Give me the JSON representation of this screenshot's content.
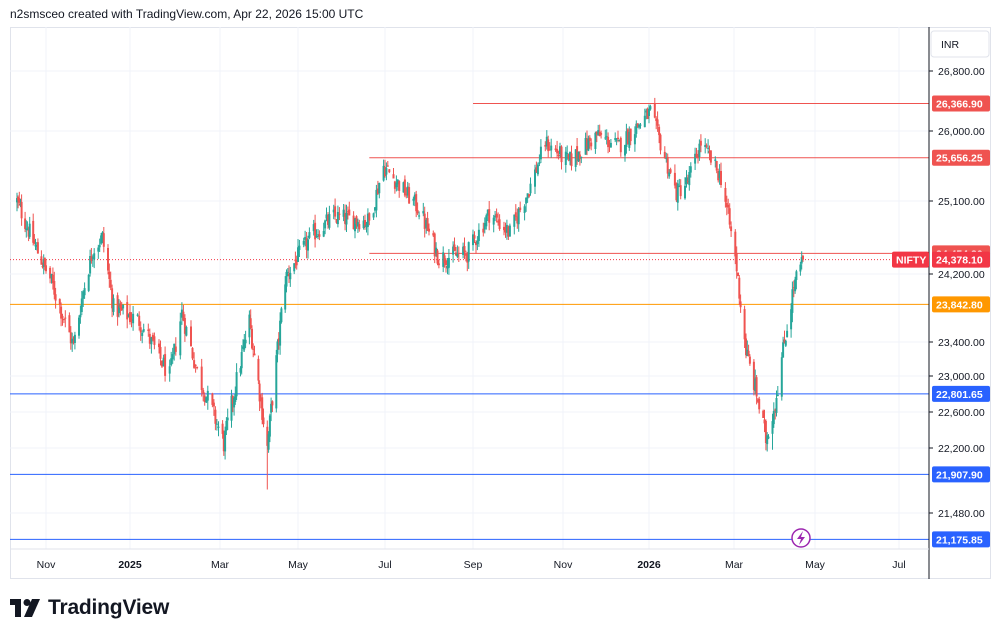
{
  "header": {
    "title": "n2smsceo created with TradingView.com, Apr 22, 2026 15:00 UTC"
  },
  "footer": {
    "logo_text": "TradingView"
  },
  "colors": {
    "up": "#26a69a",
    "down": "#ef5350",
    "resistance": "#ef5350",
    "support": "#2962ff",
    "pivot": "#ff9800",
    "current": "#f23645"
  },
  "chart_data": {
    "type": "candlestick",
    "title": "",
    "symbol": "NIFTY",
    "currency": "INR",
    "ylim": [
      21000,
      27100
    ],
    "y_ticks": [
      26800,
      26000,
      25100,
      24200,
      23400,
      23000,
      22600,
      22200,
      21480
    ],
    "y_tick_labels": [
      "26,800.00",
      "26,000.00",
      "25,100.00",
      "24,200.00",
      "23,400.00",
      "23,000.00",
      "22,600.00",
      "22,200.00",
      "21,480.00"
    ],
    "x_labels": [
      {
        "label": "Nov",
        "date": "2024-11-01",
        "bold": false
      },
      {
        "label": "2025",
        "date": "2025-01-01",
        "bold": true
      },
      {
        "label": "Mar",
        "date": "2025-03-01",
        "bold": false
      },
      {
        "label": "May",
        "date": "2025-05-01",
        "bold": false
      },
      {
        "label": "Jul",
        "date": "2025-07-01",
        "bold": false
      },
      {
        "label": "Sep",
        "date": "2025-09-01",
        "bold": false
      },
      {
        "label": "Nov",
        "date": "2025-11-01",
        "bold": false
      },
      {
        "label": "2026",
        "date": "2026-01-01",
        "bold": true
      },
      {
        "label": "Mar",
        "date": "2026-03-01",
        "bold": false
      },
      {
        "label": "May",
        "date": "2026-05-01",
        "bold": false
      },
      {
        "label": "Jul",
        "date": "2026-07-01",
        "bold": false
      }
    ],
    "anchor_closes": [
      [
        "2024-10-07",
        25100
      ],
      [
        "2024-10-21",
        24600
      ],
      [
        "2024-11-04",
        24150
      ],
      [
        "2024-11-21",
        23350
      ],
      [
        "2024-11-28",
        24000
      ],
      [
        "2024-12-05",
        24500
      ],
      [
        "2024-12-12",
        24650
      ],
      [
        "2024-12-20",
        23800
      ],
      [
        "2025-01-07",
        23650
      ],
      [
        "2025-01-27",
        23000
      ],
      [
        "2025-02-04",
        23750
      ],
      [
        "2025-02-14",
        23050
      ],
      [
        "2025-03-04",
        22250
      ],
      [
        "2025-03-24",
        23650
      ],
      [
        "2025-04-07",
        22200
      ],
      [
        "2025-04-21",
        24150
      ],
      [
        "2025-05-12",
        24700
      ],
      [
        "2025-05-26",
        24900
      ],
      [
        "2025-06-20",
        24850
      ],
      [
        "2025-06-30",
        25550
      ],
      [
        "2025-07-25",
        25000
      ],
      [
        "2025-08-08",
        24400
      ],
      [
        "2025-08-28",
        24450
      ],
      [
        "2025-09-12",
        24950
      ],
      [
        "2025-09-26",
        24700
      ],
      [
        "2025-10-10",
        25300
      ],
      [
        "2025-10-20",
        25850
      ],
      [
        "2025-11-05",
        25600
      ],
      [
        "2025-11-25",
        25950
      ],
      [
        "2025-12-10",
        25800
      ],
      [
        "2026-01-02",
        26250
      ],
      [
        "2026-01-20",
        25200
      ],
      [
        "2026-01-28",
        25350
      ],
      [
        "2026-02-06",
        25850
      ],
      [
        "2026-02-20",
        25400
      ],
      [
        "2026-03-02",
        24400
      ],
      [
        "2026-03-10",
        23300
      ],
      [
        "2026-03-18",
        22800
      ],
      [
        "2026-03-25",
        22300
      ],
      [
        "2026-04-01",
        22700
      ],
      [
        "2026-04-08",
        23400
      ],
      [
        "2026-04-15",
        24050
      ],
      [
        "2026-04-22",
        24378
      ]
    ],
    "levels": [
      {
        "price": 26366.9,
        "label": "26,366.90",
        "color": "#ef5350",
        "start_date": "2025-09-01"
      },
      {
        "price": 25656.25,
        "label": "25,656.25",
        "color": "#ef5350",
        "start_date": "2025-06-20"
      },
      {
        "price": 24454.3,
        "label": "24,454.30",
        "color": "#ef5350",
        "start_date": "2025-06-20"
      },
      {
        "price": 23842.8,
        "label": "23,842.80",
        "color": "#ff9800",
        "start_date": "2024-10-01"
      },
      {
        "price": 22801.65,
        "label": "22,801.65",
        "color": "#2962ff",
        "start_date": "2024-10-01"
      },
      {
        "price": 21907.9,
        "label": "21,907.90",
        "color": "#2962ff",
        "start_date": "2024-10-01"
      },
      {
        "price": 21175.85,
        "label": "21,175.85",
        "color": "#2962ff",
        "start_date": "2024-10-01"
      }
    ],
    "current": {
      "price": 24378.1,
      "label": "24,378.10",
      "symbol_tag": "NIFTY",
      "color": "#f23645"
    }
  }
}
